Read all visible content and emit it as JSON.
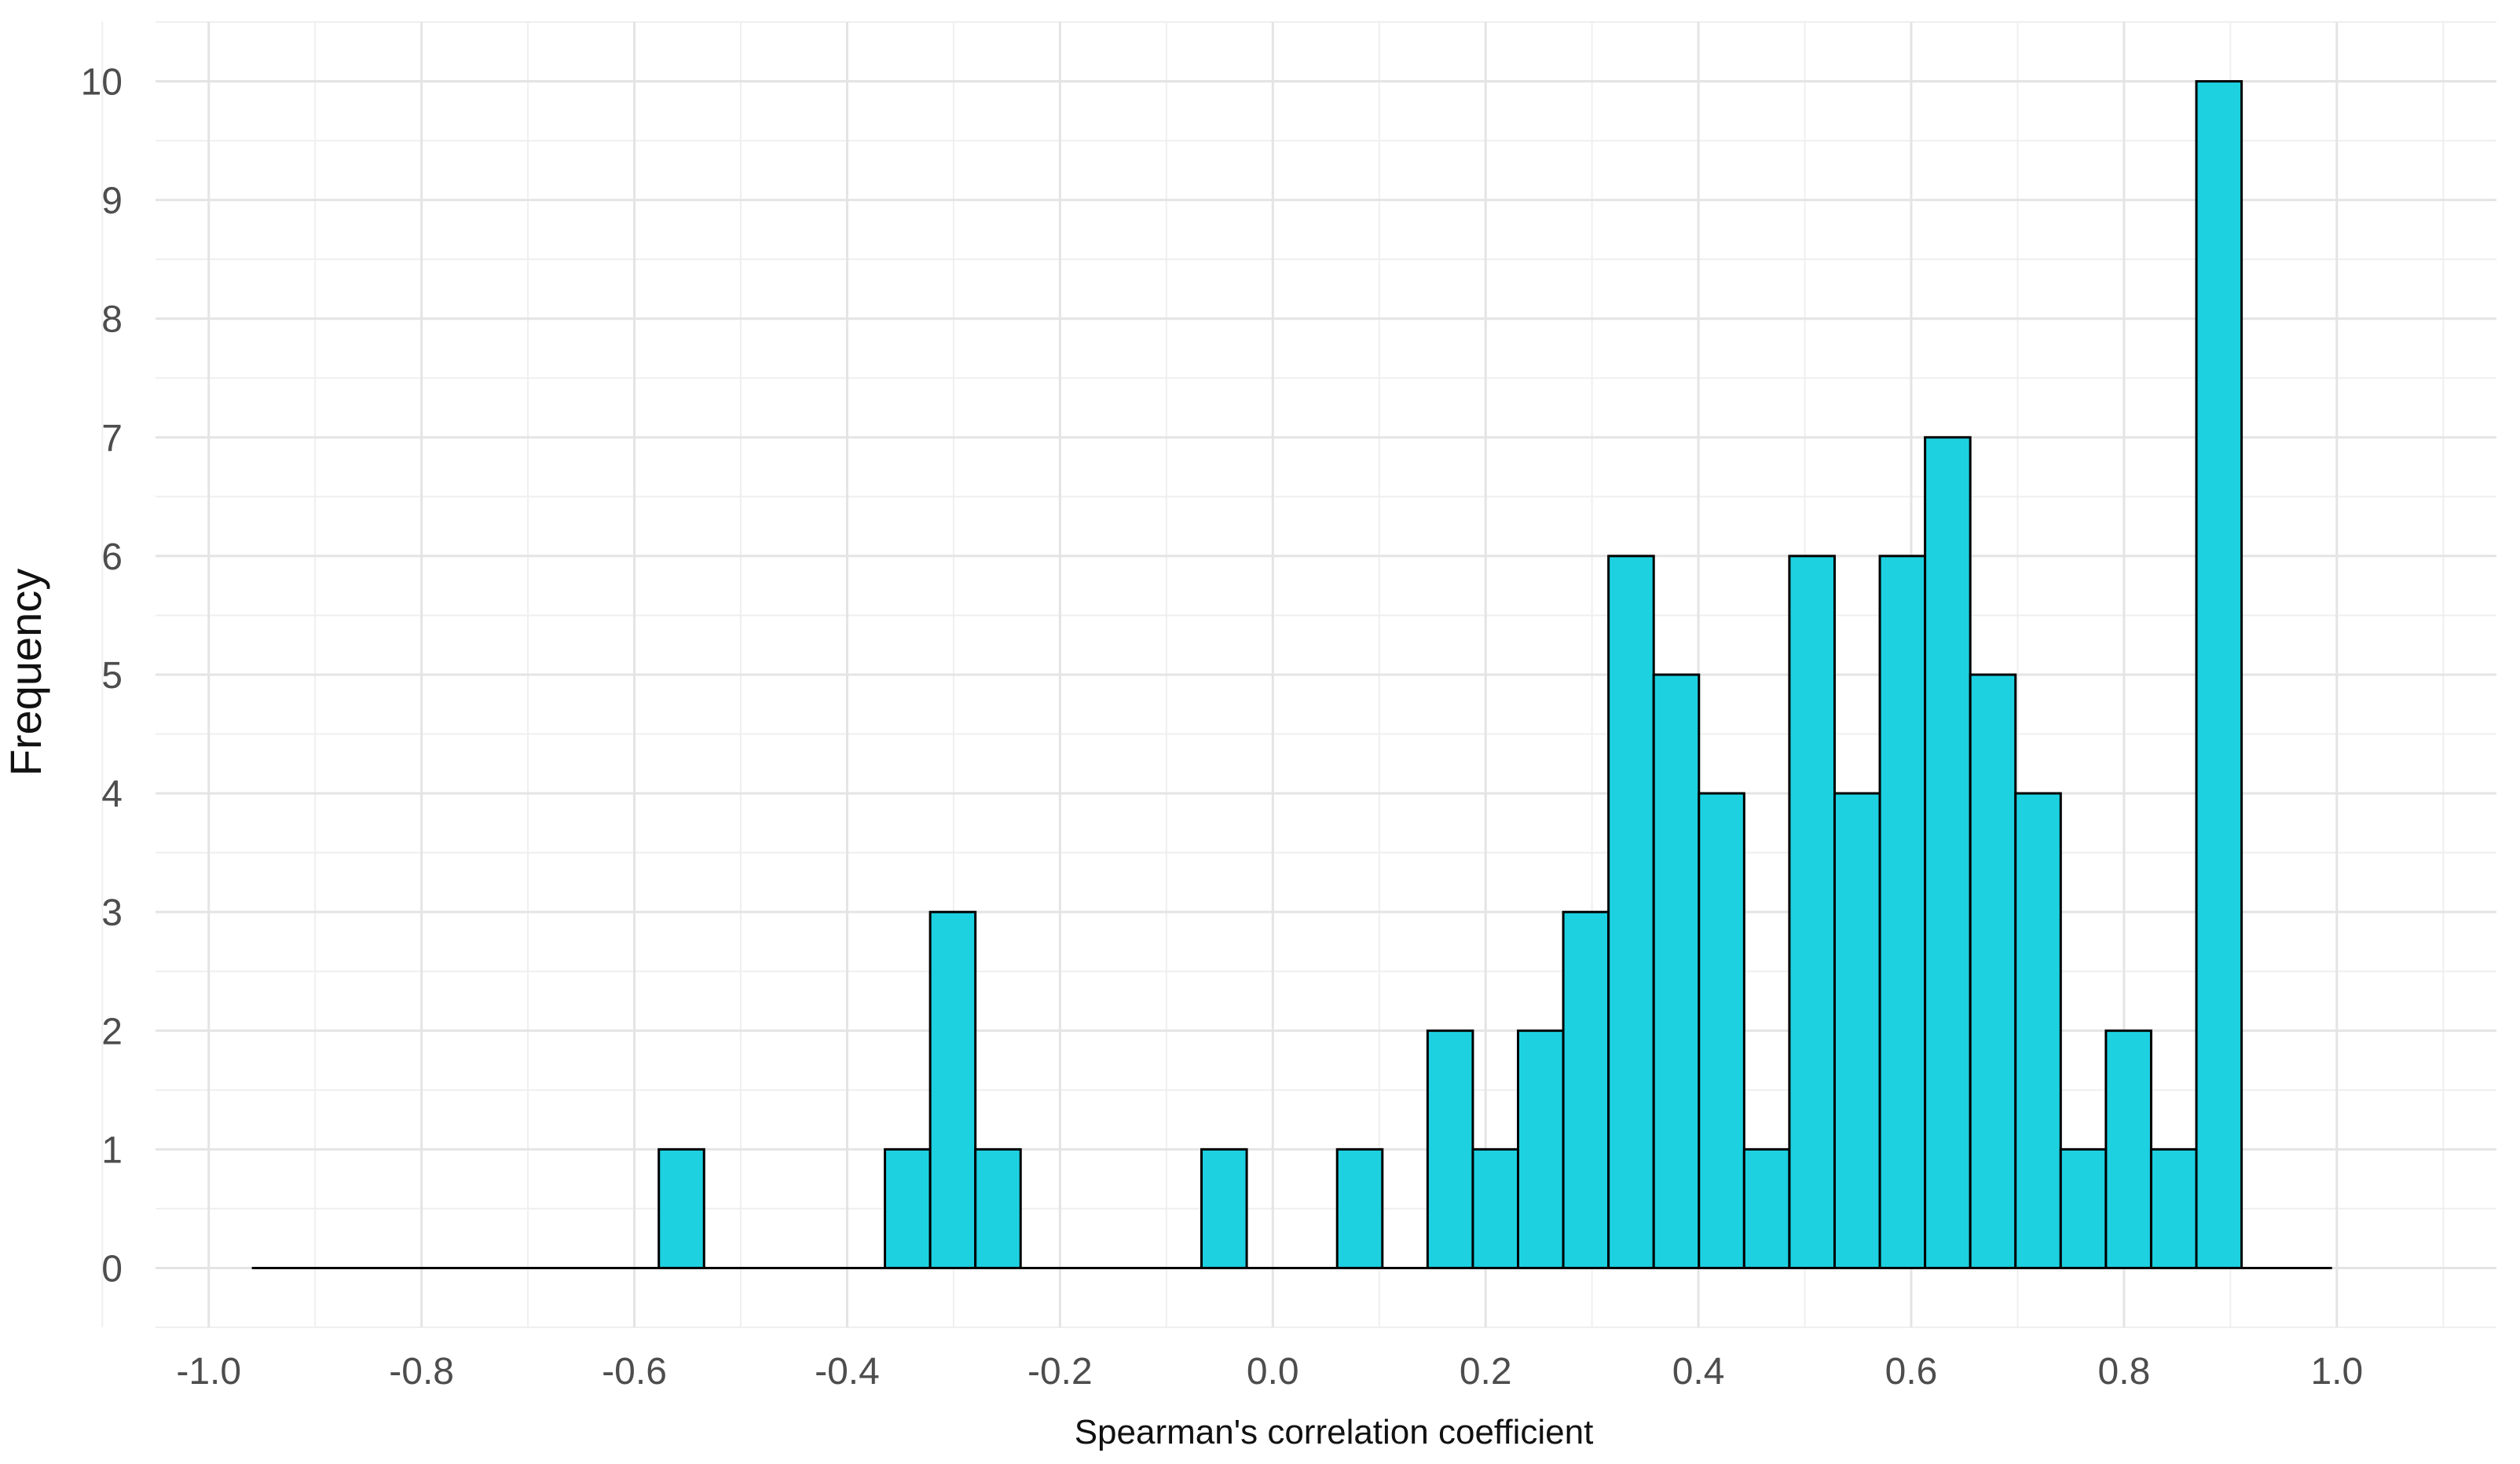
{
  "chart_data": {
    "type": "bar",
    "title": "",
    "xlabel": "Spearman's correlation coefficient",
    "ylabel": "Frequency",
    "xlim": [
      -1.05,
      1.15
    ],
    "ylim": [
      -0.5,
      10.5
    ],
    "x_ticks": [
      "-1.0",
      "-0.8",
      "-0.6",
      "-0.4",
      "-0.2",
      "0.0",
      "0.2",
      "0.4",
      "0.6",
      "0.8",
      "1.0"
    ],
    "y_ticks": [
      "0",
      "1",
      "2",
      "3",
      "4",
      "5",
      "6",
      "7",
      "8",
      "9",
      "10"
    ],
    "grid": true,
    "bin_width": 0.0425,
    "bin_start": -0.9595,
    "values": [
      0,
      0,
      0,
      0,
      0,
      0,
      0,
      0,
      0,
      1,
      0,
      0,
      0,
      0,
      1,
      3,
      1,
      0,
      0,
      0,
      0,
      1,
      0,
      0,
      1,
      0,
      2,
      1,
      2,
      3,
      6,
      5,
      4,
      1,
      6,
      4,
      6,
      7,
      5,
      4,
      1,
      2,
      1,
      10,
      0,
      0
    ],
    "bar_color": "#1DD1E1",
    "edge_color": "#000000"
  }
}
